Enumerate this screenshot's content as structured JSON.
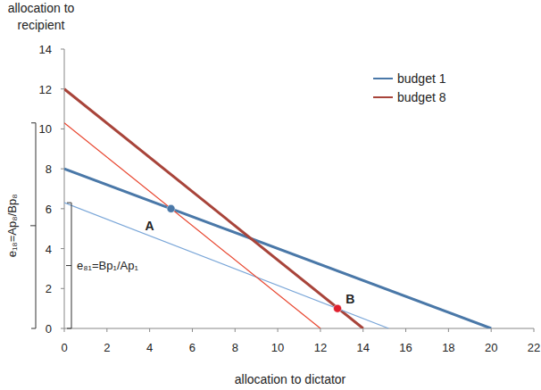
{
  "chart_data": {
    "type": "line",
    "xlabel": "allocation to dictator",
    "ylabel": "allocation to\nrecipient",
    "xlim": [
      0,
      22
    ],
    "ylim": [
      0,
      14
    ],
    "xticks": [
      0,
      2,
      4,
      6,
      8,
      10,
      12,
      14,
      16,
      18,
      20,
      22
    ],
    "yticks": [
      0,
      2,
      4,
      6,
      8,
      10,
      12,
      14
    ],
    "grid": false,
    "legend": "upper right",
    "series": [
      {
        "name": "budget 1",
        "color": "#4a78a8",
        "x": [
          0,
          20
        ],
        "values": [
          8,
          0
        ]
      },
      {
        "name": "budget 8",
        "color": "#a8443a",
        "x": [
          0,
          14
        ],
        "values": [
          12,
          0
        ]
      },
      {
        "color": "#7aa6d8",
        "x": [
          0,
          15.2
        ],
        "values": [
          6.3,
          0
        ]
      },
      {
        "color": "#e8452e",
        "x": [
          0,
          12
        ],
        "values": [
          10.3,
          0
        ]
      },
      {
        "type": "scatter",
        "marker": "circle",
        "color": "#4a78a8",
        "x": [
          5
        ],
        "values": [
          6
        ]
      },
      {
        "type": "scatter",
        "marker": "circle",
        "color": "#e0202e",
        "x": [
          12.8
        ],
        "values": [
          1
        ]
      }
    ],
    "annotations": [
      {
        "text": "A",
        "x": 4,
        "y": 4.9
      },
      {
        "text": "B",
        "x": 13.4,
        "y": 1.25
      },
      {
        "text": "e₈₁=Bp₁/Ap₁"
      },
      {
        "text": "e₁₈=Ap₈/Bp₈"
      }
    ]
  }
}
